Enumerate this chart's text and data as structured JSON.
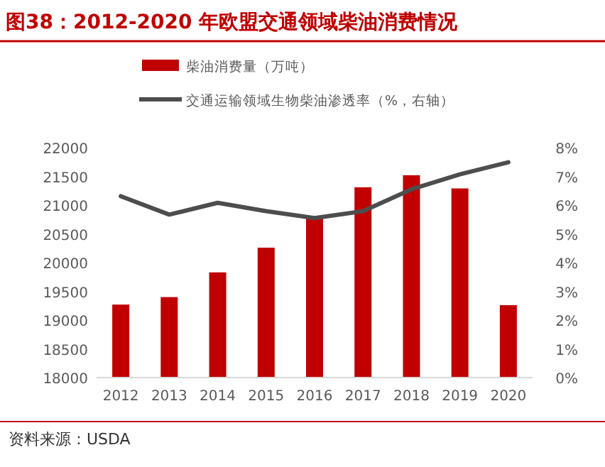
{
  "chart_data": {
    "type": "bar",
    "title": "图38：2012-2020 年欧盟交通领域柴油消费情况",
    "categories": [
      "2012",
      "2013",
      "2014",
      "2015",
      "2016",
      "2017",
      "2018",
      "2019",
      "2020"
    ],
    "series": [
      {
        "name": "柴油消费量（万吨）",
        "color": "#c00000",
        "values": [
          19270,
          19400,
          19830,
          20260,
          20770,
          21310,
          21520,
          21290,
          19260
        ]
      },
      {
        "name": "交通运输领域生物柴油渗透率（%，右轴）",
        "type": "line",
        "axis": "y2",
        "color": "#4d4d4d",
        "values": [
          6.31,
          5.67,
          6.08,
          5.79,
          5.55,
          5.79,
          6.55,
          7.07,
          7.49
        ]
      }
    ],
    "ylim": [
      18000,
      22000
    ],
    "yticks": [
      18000,
      18500,
      19000,
      19500,
      20000,
      20500,
      21000,
      21500,
      22000
    ],
    "y2lim": [
      0,
      8
    ],
    "y2ticks": [
      {
        "value": 0,
        "label": "0%"
      },
      {
        "value": 1,
        "label": "1%"
      },
      {
        "value": 2,
        "label": "2%"
      },
      {
        "value": 3,
        "label": "3%"
      },
      {
        "value": 4,
        "label": "4%"
      },
      {
        "value": 5,
        "label": "5%"
      },
      {
        "value": 6,
        "label": "6%"
      },
      {
        "value": 7,
        "label": "7%"
      },
      {
        "value": 8,
        "label": "8%"
      }
    ],
    "legend": "top",
    "grid": false,
    "annotations": [
      "资料来源：USDA"
    ]
  }
}
